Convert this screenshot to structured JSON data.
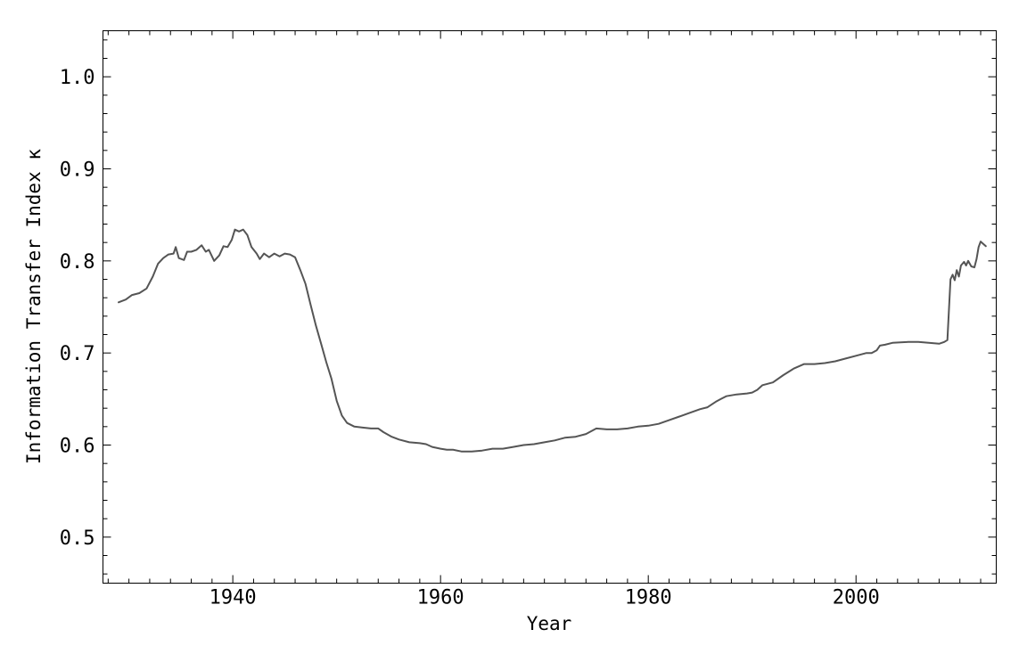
{
  "chart_data": {
    "type": "line",
    "title": "",
    "xlabel": "Year",
    "ylabel": "Information Transfer Index κ",
    "xlim": [
      1927.5,
      2013.5
    ],
    "ylim": [
      0.45,
      1.05
    ],
    "x_ticks": [
      1940,
      1960,
      1980,
      2000
    ],
    "x_tick_labels": [
      "1940",
      "1960",
      "1980",
      "2000"
    ],
    "x_minor_step": 2,
    "y_ticks": [
      0.5,
      0.6,
      0.7,
      0.8,
      0.9,
      1.0
    ],
    "y_tick_labels": [
      "0.5",
      "0.6",
      "0.7",
      "0.8",
      "0.9",
      "1.0"
    ],
    "y_minor_step": 0.02,
    "grid": false,
    "legend": "none",
    "line_color": "#555555",
    "series": [
      {
        "points": [
          [
            1929.0,
            0.755
          ],
          [
            1929.7,
            0.758
          ],
          [
            1930.3,
            0.763
          ],
          [
            1931.0,
            0.765
          ],
          [
            1931.7,
            0.77
          ],
          [
            1932.3,
            0.783
          ],
          [
            1932.8,
            0.797
          ],
          [
            1933.3,
            0.803
          ],
          [
            1933.8,
            0.807
          ],
          [
            1934.3,
            0.808
          ],
          [
            1934.5,
            0.815
          ],
          [
            1934.8,
            0.803
          ],
          [
            1935.3,
            0.801
          ],
          [
            1935.6,
            0.81
          ],
          [
            1936.0,
            0.81
          ],
          [
            1936.5,
            0.812
          ],
          [
            1937.0,
            0.817
          ],
          [
            1937.4,
            0.81
          ],
          [
            1937.7,
            0.812
          ],
          [
            1938.2,
            0.8
          ],
          [
            1938.7,
            0.806
          ],
          [
            1939.1,
            0.816
          ],
          [
            1939.5,
            0.815
          ],
          [
            1939.9,
            0.823
          ],
          [
            1940.2,
            0.834
          ],
          [
            1940.6,
            0.832
          ],
          [
            1941.0,
            0.834
          ],
          [
            1941.4,
            0.828
          ],
          [
            1941.8,
            0.815
          ],
          [
            1942.3,
            0.808
          ],
          [
            1942.6,
            0.802
          ],
          [
            1943.0,
            0.808
          ],
          [
            1943.5,
            0.804
          ],
          [
            1944.0,
            0.808
          ],
          [
            1944.5,
            0.805
          ],
          [
            1945.0,
            0.808
          ],
          [
            1945.5,
            0.807
          ],
          [
            1946.0,
            0.804
          ],
          [
            1946.5,
            0.79
          ],
          [
            1947.0,
            0.775
          ],
          [
            1947.5,
            0.752
          ],
          [
            1948.0,
            0.73
          ],
          [
            1948.5,
            0.71
          ],
          [
            1949.0,
            0.69
          ],
          [
            1949.5,
            0.672
          ],
          [
            1950.0,
            0.648
          ],
          [
            1950.5,
            0.632
          ],
          [
            1951.0,
            0.624
          ],
          [
            1951.7,
            0.62
          ],
          [
            1952.5,
            0.619
          ],
          [
            1953.3,
            0.618
          ],
          [
            1954.0,
            0.618
          ],
          [
            1954.5,
            0.614
          ],
          [
            1955.3,
            0.609
          ],
          [
            1956.0,
            0.606
          ],
          [
            1957.0,
            0.603
          ],
          [
            1958.0,
            0.602
          ],
          [
            1958.6,
            0.601
          ],
          [
            1959.2,
            0.598
          ],
          [
            1960.0,
            0.596
          ],
          [
            1960.6,
            0.595
          ],
          [
            1961.2,
            0.595
          ],
          [
            1962.0,
            0.593
          ],
          [
            1963.0,
            0.593
          ],
          [
            1964.0,
            0.594
          ],
          [
            1965.0,
            0.596
          ],
          [
            1966.0,
            0.596
          ],
          [
            1967.0,
            0.598
          ],
          [
            1968.0,
            0.6
          ],
          [
            1969.0,
            0.601
          ],
          [
            1970.0,
            0.603
          ],
          [
            1971.0,
            0.605
          ],
          [
            1972.0,
            0.608
          ],
          [
            1973.0,
            0.609
          ],
          [
            1974.0,
            0.612
          ],
          [
            1975.0,
            0.618
          ],
          [
            1976.0,
            0.617
          ],
          [
            1977.0,
            0.617
          ],
          [
            1978.0,
            0.618
          ],
          [
            1979.0,
            0.62
          ],
          [
            1980.0,
            0.621
          ],
          [
            1981.0,
            0.623
          ],
          [
            1982.0,
            0.627
          ],
          [
            1983.0,
            0.631
          ],
          [
            1984.0,
            0.635
          ],
          [
            1985.0,
            0.639
          ],
          [
            1985.7,
            0.641
          ],
          [
            1986.5,
            0.647
          ],
          [
            1987.0,
            0.65
          ],
          [
            1987.5,
            0.653
          ],
          [
            1988.5,
            0.655
          ],
          [
            1989.5,
            0.656
          ],
          [
            1990.0,
            0.657
          ],
          [
            1990.5,
            0.66
          ],
          [
            1991.0,
            0.665
          ],
          [
            1992.0,
            0.668
          ],
          [
            1993.0,
            0.676
          ],
          [
            1994.0,
            0.683
          ],
          [
            1995.0,
            0.688
          ],
          [
            1996.0,
            0.688
          ],
          [
            1997.0,
            0.689
          ],
          [
            1998.0,
            0.691
          ],
          [
            1999.0,
            0.694
          ],
          [
            2000.0,
            0.697
          ],
          [
            2001.0,
            0.7
          ],
          [
            2001.5,
            0.7
          ],
          [
            2002.0,
            0.703
          ],
          [
            2002.3,
            0.708
          ],
          [
            2002.8,
            0.709
          ],
          [
            2003.5,
            0.711
          ],
          [
            2005.0,
            0.712
          ],
          [
            2006.0,
            0.712
          ],
          [
            2007.0,
            0.711
          ],
          [
            2008.0,
            0.71
          ],
          [
            2008.5,
            0.712
          ],
          [
            2008.8,
            0.714
          ],
          [
            2009.1,
            0.78
          ],
          [
            2009.3,
            0.785
          ],
          [
            2009.5,
            0.779
          ],
          [
            2009.7,
            0.79
          ],
          [
            2009.9,
            0.783
          ],
          [
            2010.1,
            0.795
          ],
          [
            2010.4,
            0.799
          ],
          [
            2010.6,
            0.795
          ],
          [
            2010.8,
            0.8
          ],
          [
            2011.1,
            0.794
          ],
          [
            2011.4,
            0.793
          ],
          [
            2011.6,
            0.802
          ],
          [
            2011.8,
            0.815
          ],
          [
            2012.0,
            0.821
          ],
          [
            2012.3,
            0.818
          ],
          [
            2012.5,
            0.816
          ]
        ]
      }
    ]
  }
}
